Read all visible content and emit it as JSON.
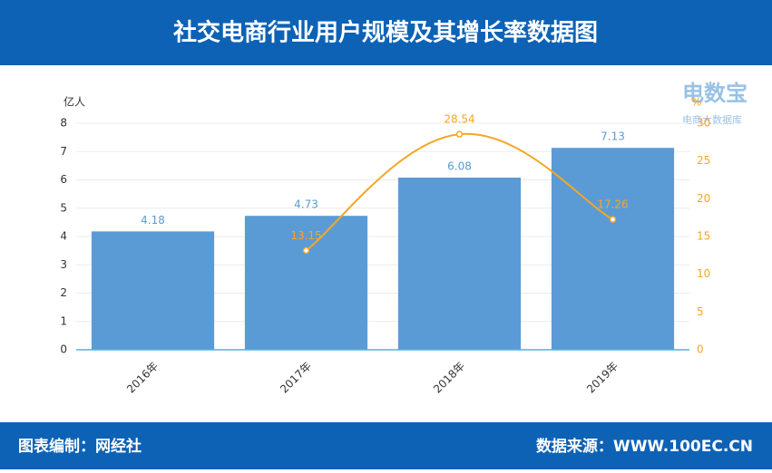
{
  "chart_data": {
    "type": "bar",
    "title": "社交电商行业用户规模及其增长率数据图",
    "categories": [
      "2016年",
      "2017年",
      "2018年",
      "2019年"
    ],
    "series": [
      {
        "type": "bar",
        "color": "#5b9bd5",
        "values": [
          4.18,
          4.73,
          6.08,
          7.13
        ]
      },
      {
        "type": "line",
        "axis": "y2",
        "color": "#f5a623",
        "values": [
          null,
          13.15,
          28.54,
          17.26
        ]
      }
    ],
    "ylabel": "亿人",
    "y2label": "%",
    "ylim": [
      0,
      8
    ],
    "yticks": [
      0,
      1,
      2,
      3,
      4,
      5,
      6,
      7,
      8
    ],
    "y2lim": [
      0,
      30
    ],
    "y2ticks": [
      0,
      5,
      10,
      15,
      20,
      25,
      30
    ],
    "grid": true,
    "watermark": {
      "name": "电数宝",
      "subtitle": "电商大数据库"
    },
    "footer": {
      "left": "图表编制：网经社",
      "right": "数据来源：WWW.100EC.CN"
    }
  }
}
